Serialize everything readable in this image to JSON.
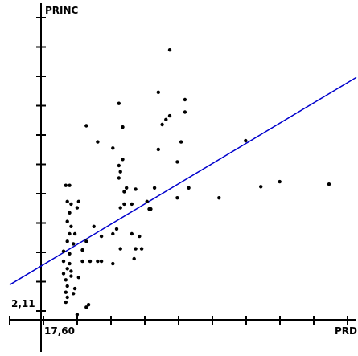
{
  "chart_data": {
    "type": "scatter",
    "title": "",
    "xlabel": "PRD",
    "ylabel": "PRINC",
    "x_tick_label": "17,60",
    "y_tick_label": "2,11",
    "grid": false,
    "legend": "none",
    "colors": {
      "points": "#000000",
      "regression_line": "#0000cc",
      "axes": "#000000"
    },
    "xlim": [
      11.5,
      57.2
    ],
    "ylim": [
      0.5,
      11.85
    ],
    "points": [
      {
        "x": 18.9,
        "y": 5.65
      },
      {
        "x": 19.4,
        "y": 5.65
      },
      {
        "x": 19.1,
        "y": 5.0
      },
      {
        "x": 20.6,
        "y": 5.0
      },
      {
        "x": 19.6,
        "y": 4.9
      },
      {
        "x": 20.4,
        "y": 4.75
      },
      {
        "x": 19.4,
        "y": 4.55
      },
      {
        "x": 19.1,
        "y": 4.2
      },
      {
        "x": 19.6,
        "y": 4.0
      },
      {
        "x": 19.4,
        "y": 3.7
      },
      {
        "x": 20.1,
        "y": 3.7
      },
      {
        "x": 19.1,
        "y": 3.4
      },
      {
        "x": 19.9,
        "y": 3.3
      },
      {
        "x": 18.6,
        "y": 3.0
      },
      {
        "x": 19.4,
        "y": 2.9
      },
      {
        "x": 18.6,
        "y": 2.6
      },
      {
        "x": 19.4,
        "y": 2.5
      },
      {
        "x": 19.1,
        "y": 2.3
      },
      {
        "x": 19.6,
        "y": 2.2
      },
      {
        "x": 18.6,
        "y": 2.1
      },
      {
        "x": 19.6,
        "y": 2.0
      },
      {
        "x": 18.9,
        "y": 1.85
      },
      {
        "x": 20.6,
        "y": 1.95
      },
      {
        "x": 19.1,
        "y": 1.6
      },
      {
        "x": 20.1,
        "y": 1.5
      },
      {
        "x": 18.9,
        "y": 1.35
      },
      {
        "x": 19.9,
        "y": 1.3
      },
      {
        "x": 19.1,
        "y": 1.15
      },
      {
        "x": 18.9,
        "y": 0.95
      },
      {
        "x": 21.6,
        "y": 0.75
      },
      {
        "x": 20.4,
        "y": 0.45
      },
      {
        "x": 21.9,
        "y": 0.85
      },
      {
        "x": 21.1,
        "y": 2.6
      },
      {
        "x": 22.1,
        "y": 2.6
      },
      {
        "x": 21.1,
        "y": 3.05
      },
      {
        "x": 21.6,
        "y": 3.4
      },
      {
        "x": 22.6,
        "y": 4.0
      },
      {
        "x": 23.1,
        "y": 2.6
      },
      {
        "x": 23.6,
        "y": 2.6
      },
      {
        "x": 23.6,
        "y": 3.6
      },
      {
        "x": 25.1,
        "y": 3.7
      },
      {
        "x": 25.6,
        "y": 3.9
      },
      {
        "x": 25.1,
        "y": 2.5
      },
      {
        "x": 26.1,
        "y": 3.1
      },
      {
        "x": 28.1,
        "y": 3.1
      },
      {
        "x": 27.6,
        "y": 3.7
      },
      {
        "x": 28.6,
        "y": 3.6
      },
      {
        "x": 28.9,
        "y": 3.1
      },
      {
        "x": 27.9,
        "y": 2.7
      },
      {
        "x": 26.1,
        "y": 4.75
      },
      {
        "x": 26.6,
        "y": 4.9
      },
      {
        "x": 27.6,
        "y": 4.9
      },
      {
        "x": 28.1,
        "y": 5.5
      },
      {
        "x": 29.6,
        "y": 5.0
      },
      {
        "x": 30.6,
        "y": 5.55
      },
      {
        "x": 29.9,
        "y": 4.7
      },
      {
        "x": 26.6,
        "y": 5.4
      },
      {
        "x": 26.9,
        "y": 5.55
      },
      {
        "x": 25.9,
        "y": 5.95
      },
      {
        "x": 26.1,
        "y": 6.2
      },
      {
        "x": 25.9,
        "y": 6.45
      },
      {
        "x": 26.4,
        "y": 6.7
      },
      {
        "x": 25.1,
        "y": 7.15
      },
      {
        "x": 26.4,
        "y": 8.0
      },
      {
        "x": 25.9,
        "y": 8.95
      },
      {
        "x": 21.6,
        "y": 8.05
      },
      {
        "x": 23.1,
        "y": 7.4
      },
      {
        "x": 30.1,
        "y": 4.7
      },
      {
        "x": 31.1,
        "y": 7.1
      },
      {
        "x": 31.6,
        "y": 8.1
      },
      {
        "x": 32.1,
        "y": 8.3
      },
      {
        "x": 32.6,
        "y": 8.45
      },
      {
        "x": 33.6,
        "y": 6.6
      },
      {
        "x": 34.1,
        "y": 7.4
      },
      {
        "x": 34.6,
        "y": 8.6
      },
      {
        "x": 34.6,
        "y": 9.1
      },
      {
        "x": 31.1,
        "y": 9.4
      },
      {
        "x": 33.6,
        "y": 5.15
      },
      {
        "x": 35.1,
        "y": 5.55
      },
      {
        "x": 32.6,
        "y": 11.1
      },
      {
        "x": 39.1,
        "y": 5.15
      },
      {
        "x": 42.6,
        "y": 7.45
      },
      {
        "x": 44.6,
        "y": 5.6
      },
      {
        "x": 47.1,
        "y": 5.8
      },
      {
        "x": 53.6,
        "y": 5.7
      }
    ],
    "regression_line": {
      "x": [
        11.5,
        57.2
      ],
      "y": [
        1.65,
        10.0
      ]
    }
  }
}
